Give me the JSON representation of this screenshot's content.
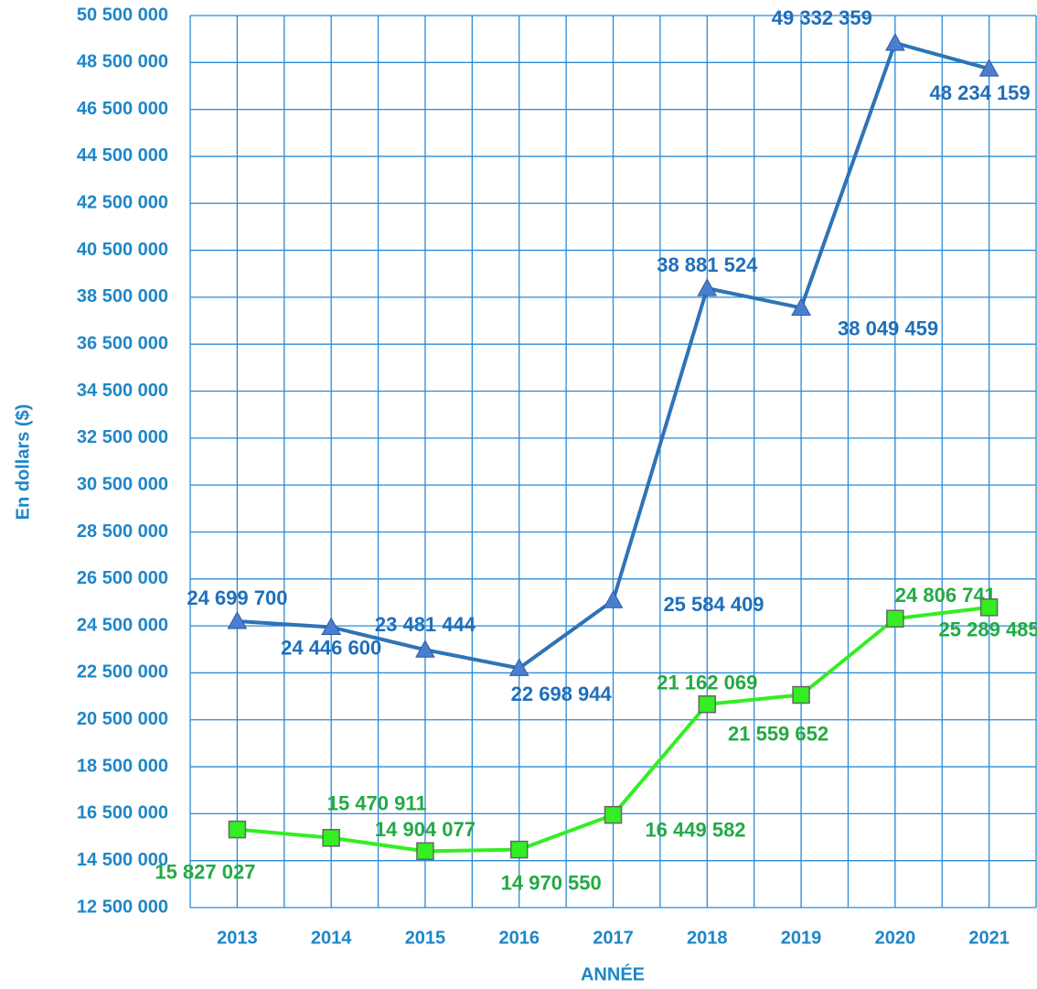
{
  "chart_data": {
    "type": "line",
    "x_label": "ANNÉE",
    "y_label": "En dollars ($)",
    "categories": [
      "2013",
      "2014",
      "2015",
      "2016",
      "2017",
      "2018",
      "2019",
      "2020",
      "2021"
    ],
    "series": [
      {
        "color": "#2e74b5",
        "marker": "triangle",
        "marker_color": "#4a7fd0",
        "label_color": "#1f6fba",
        "values": [
          24699700,
          24446600,
          23481444,
          22698944,
          25584409,
          38881524,
          38049459,
          49332359,
          48234159
        ],
        "value_labels": [
          "24 699 700",
          "24 446 600",
          "23 481 444",
          "22 698 944",
          "25 584 409",
          "38 881 524",
          "38 049 459",
          "49 332 359",
          "48 234 159"
        ]
      },
      {
        "color": "#33ee22",
        "marker": "square",
        "marker_color": "#33ee22",
        "label_color": "#22aa44",
        "values": [
          15827027,
          15470911,
          14904077,
          14970550,
          16449582,
          21162069,
          21559652,
          24806741,
          25289485
        ],
        "value_labels": [
          "15 827 027",
          "15 470 911",
          "14 904 077",
          "14 970 550",
          "16 449 582",
          "21 162 069",
          "21 559 652",
          "24 806 741",
          "25 289 485"
        ]
      }
    ],
    "ylim": [
      12500000,
      50500000
    ],
    "yticks": [
      {
        "value": 12500000,
        "label": "12 500 000"
      },
      {
        "value": 14500000,
        "label": "14 500 000"
      },
      {
        "value": 16500000,
        "label": "16 500 000"
      },
      {
        "value": 18500000,
        "label": "18 500 000"
      },
      {
        "value": 20500000,
        "label": "20 500 000"
      },
      {
        "value": 22500000,
        "label": "22 500 000"
      },
      {
        "value": 24500000,
        "label": "24 500 000"
      },
      {
        "value": 26500000,
        "label": "26 500 000"
      },
      {
        "value": 28500000,
        "label": "28 500 000"
      },
      {
        "value": 30500000,
        "label": "30 500 000"
      },
      {
        "value": 32500000,
        "label": "32 500 000"
      },
      {
        "value": 34500000,
        "label": "34 500 000"
      },
      {
        "value": 36500000,
        "label": "36 500 000"
      },
      {
        "value": 38500000,
        "label": "38 500 000"
      },
      {
        "value": 40500000,
        "label": "40 500 000"
      },
      {
        "value": 42500000,
        "label": "42 500 000"
      },
      {
        "value": 44500000,
        "label": "44 500 000"
      },
      {
        "value": 46500000,
        "label": "46 500 000"
      },
      {
        "value": 48500000,
        "label": "48 500 000"
      },
      {
        "value": 50500000,
        "label": "50 500 000"
      }
    ],
    "grid": true,
    "grid_color": "#2a8ad8"
  }
}
